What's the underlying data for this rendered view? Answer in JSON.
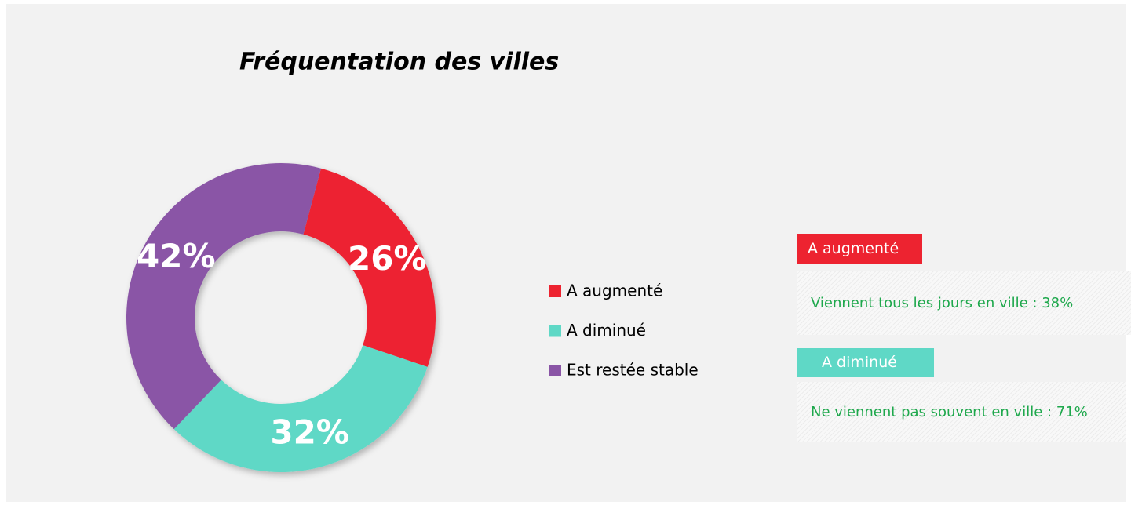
{
  "chart_data": {
    "type": "donut",
    "title": "Fréquentation des villes",
    "categories": [
      "A augmenté",
      "A diminué",
      "Est restée stable"
    ],
    "values": [
      26,
      32,
      42
    ],
    "value_labels": [
      "26%",
      "32%",
      "42%"
    ],
    "colors": [
      "#ed2330",
      "#5fd8c6",
      "#8a55a6"
    ]
  },
  "panels": [
    {
      "title": "A augmenté",
      "text": "Viennent tous les jours en ville  : 38%",
      "color": "#ed2330"
    },
    {
      "title": "A diminué",
      "text": "Ne viennent pas souvent en ville : 71%",
      "color": "#5fd8c6"
    }
  ]
}
